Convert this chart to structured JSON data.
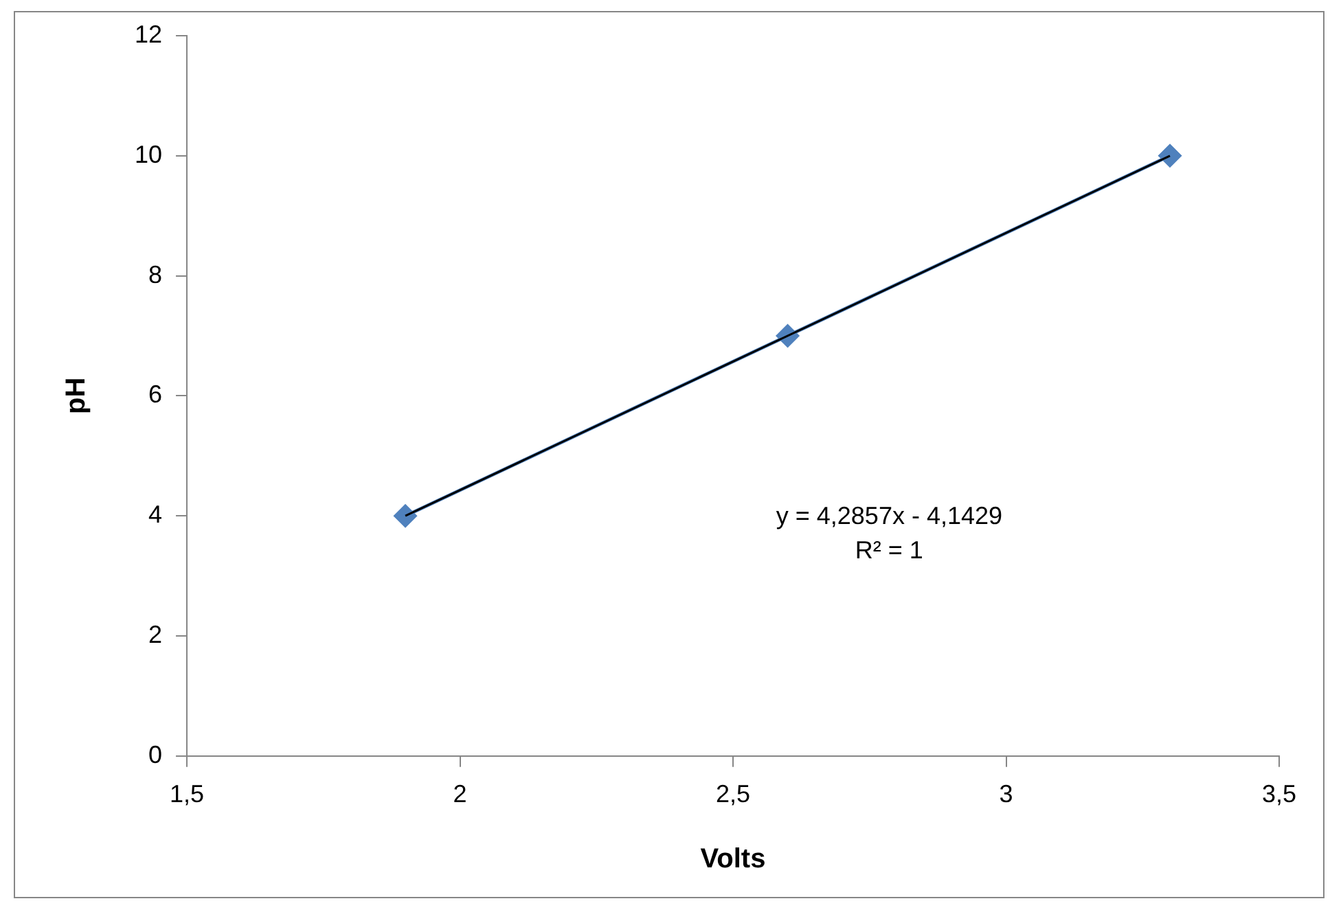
{
  "chart_data": {
    "type": "line",
    "xlabel": "Volts",
    "ylabel": "pH",
    "series": [
      {
        "color": "#4f81bd",
        "x": [
          1.9,
          2.6,
          3.3
        ],
        "values": [
          4,
          7,
          10
        ],
        "marker": "diamond"
      },
      {
        "color": "#000000",
        "x": [
          1.9,
          3.3
        ],
        "values": [
          4,
          10
        ],
        "marker": "none"
      }
    ],
    "xlim": [
      1.5,
      3.5
    ],
    "xticks": [
      {
        "value": 1.5,
        "label": "1,5"
      },
      2,
      {
        "value": 2.5,
        "label": "2,5"
      },
      3,
      {
        "value": 3.5,
        "label": "3,5"
      }
    ],
    "ylim": [
      0,
      12
    ],
    "yticks": [
      0,
      2,
      4,
      6,
      8,
      10,
      12
    ],
    "annotations": [
      "y = 4,2857x - 4,1429",
      "R² = 1"
    ],
    "grid": false,
    "legend": false
  }
}
